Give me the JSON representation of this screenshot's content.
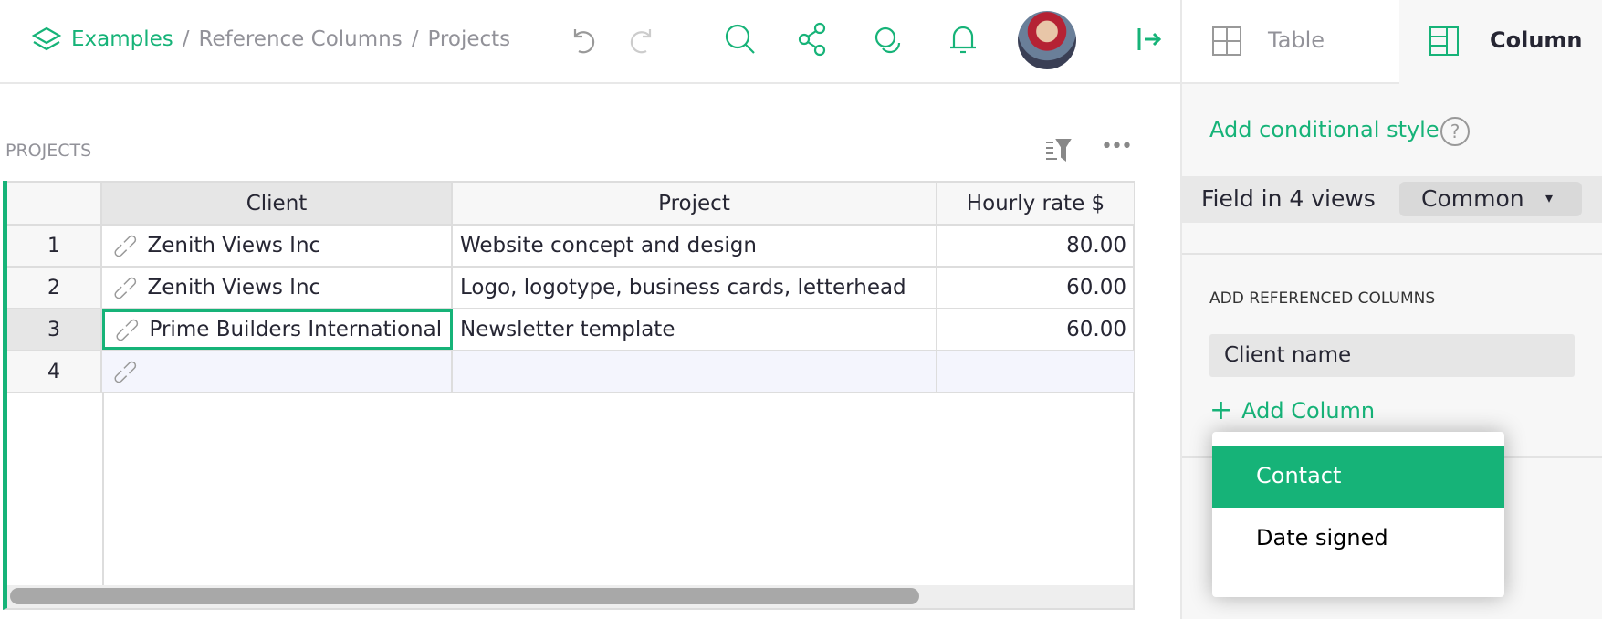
{
  "header": {
    "breadcrumb": [
      "Examples",
      "Reference Columns",
      "Projects"
    ],
    "separator": "/"
  },
  "right_panel": {
    "tabs": [
      {
        "label": "Table"
      },
      {
        "label": "Column"
      }
    ],
    "add_conditional_style": "Add conditional style",
    "help": "?",
    "field_in_views": "Field in 4 views",
    "field_mode": "Common",
    "field_mode_caret": "▾",
    "add_referenced_columns_label": "ADD REFERENCED COLUMNS",
    "referenced_columns": [
      "Client name"
    ],
    "add_column_label": "Add Column",
    "add_column_plus": "+"
  },
  "dropdown": {
    "items": [
      {
        "label": "Contact",
        "selected": true
      },
      {
        "label": "Date signed",
        "selected": false
      }
    ]
  },
  "section": {
    "title": "PROJECTS"
  },
  "table": {
    "columns": [
      "Client",
      "Project",
      "Hourly rate $"
    ],
    "rows": [
      {
        "n": "1",
        "client": "Zenith Views Inc",
        "project": "Website concept and design",
        "rate": "80.00"
      },
      {
        "n": "2",
        "client": "Zenith Views Inc",
        "project": "Logo, logotype, business cards, letterhead",
        "rate": "60.00"
      },
      {
        "n": "3",
        "client": "Prime Builders International",
        "project": "Newsletter template",
        "rate": "60.00"
      },
      {
        "n": "4",
        "client": "",
        "project": "",
        "rate": ""
      }
    ]
  },
  "colors": {
    "accent": "#16b378"
  }
}
